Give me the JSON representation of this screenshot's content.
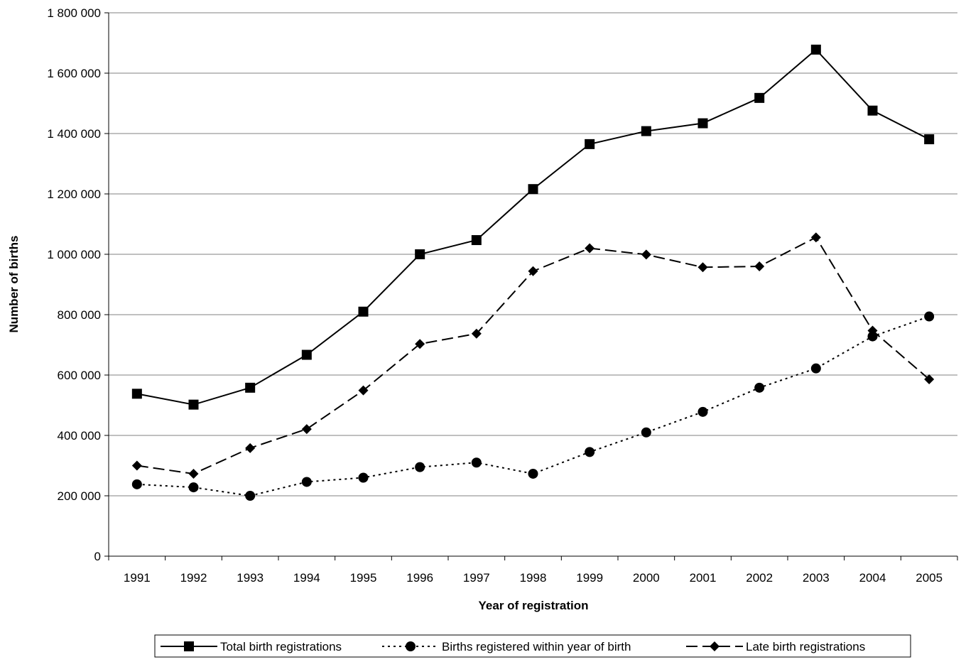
{
  "chart_data": {
    "type": "line",
    "title": "",
    "xlabel": "Year of registration",
    "ylabel": "Number of births",
    "ylim": [
      0,
      1800000
    ],
    "y_ticks": [
      0,
      200000,
      400000,
      600000,
      800000,
      1000000,
      1200000,
      1400000,
      1600000,
      1800000
    ],
    "y_tick_labels": [
      "0",
      "200 000",
      "400 000",
      "600 000",
      "800 000",
      "1 000 000",
      "1 200 000",
      "1 400 000",
      "1 600 000",
      "1 800 000"
    ],
    "categories": [
      "1991",
      "1992",
      "1993",
      "1994",
      "1995",
      "1996",
      "1997",
      "1998",
      "1999",
      "2000",
      "2001",
      "2002",
      "2003",
      "2004",
      "2005"
    ],
    "grid": "horizontal",
    "legend_position": "bottom",
    "series": [
      {
        "name": "Total birth registrations",
        "line_style": "solid",
        "marker": "square",
        "color": "#000000",
        "values": [
          538000,
          502000,
          558000,
          667000,
          810000,
          1000000,
          1047000,
          1216000,
          1365000,
          1408000,
          1434000,
          1518000,
          1678000,
          1476000,
          1381000
        ]
      },
      {
        "name": "Births registered within year of birth",
        "line_style": "dotted",
        "marker": "circle",
        "color": "#000000",
        "values": [
          238000,
          228000,
          200000,
          246000,
          260000,
          295000,
          310000,
          273000,
          345000,
          410000,
          478000,
          558000,
          622000,
          728000,
          794000
        ]
      },
      {
        "name": "Late birth registrations",
        "line_style": "dashed",
        "marker": "diamond",
        "color": "#000000",
        "values": [
          300000,
          273000,
          358000,
          421000,
          549000,
          703000,
          737000,
          944000,
          1020000,
          999000,
          957000,
          960000,
          1056000,
          747000,
          586000
        ]
      }
    ]
  }
}
